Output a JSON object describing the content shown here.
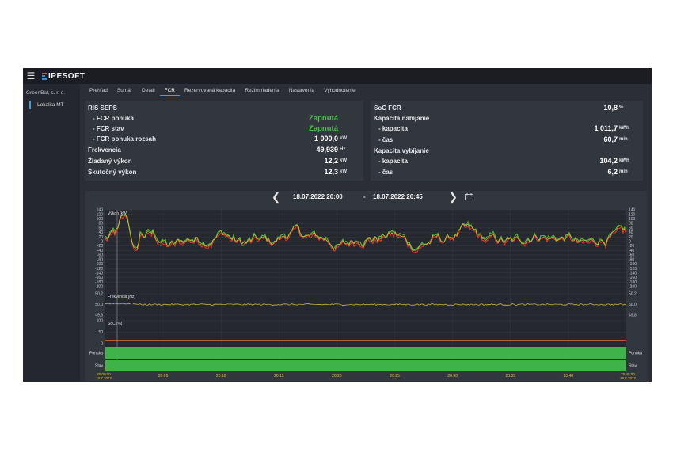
{
  "app": {
    "logo_text": "IPESOFT",
    "menu_icon": "hamburger-icon"
  },
  "sidebar": {
    "company": "GreenBat, s. r. o.",
    "site": "Lokalita MT"
  },
  "tabs": [
    {
      "label": "Prehľad",
      "active": false
    },
    {
      "label": "Sumár",
      "active": false
    },
    {
      "label": "Detail",
      "active": false
    },
    {
      "label": "FCR",
      "active": true
    },
    {
      "label": "Rezervovaná kapacita",
      "active": false
    },
    {
      "label": "Režim riadenia",
      "active": false
    },
    {
      "label": "Nastavenia",
      "active": false
    },
    {
      "label": "Vyhodnotenie",
      "active": false
    }
  ],
  "ris": {
    "title": "RIS SEPS",
    "fcr_offer_label": "- FCR ponuka",
    "fcr_offer_value": "Zapnutá",
    "fcr_state_label": "- FCR stav",
    "fcr_state_value": "Zapnutá",
    "fcr_range_label": "- FCR ponuka rozsah",
    "fcr_range_value": "1 000,0",
    "fcr_range_unit": "kW",
    "frequency_label": "Frekvencia",
    "frequency_value": "49,939",
    "frequency_unit": "Hz",
    "requested_label": "Žiadaný výkon",
    "requested_value": "12,2",
    "requested_unit": "kW",
    "actual_label": "Skutočný výkon",
    "actual_value": "12,3",
    "actual_unit": "kW"
  },
  "soc": {
    "soc_label": "SoC FCR",
    "soc_value": "10,8",
    "soc_unit": "%",
    "charge_title": "Kapacita nabíjanie",
    "charge_capacity_label": "- kapacita",
    "charge_capacity_value": "1 011,7",
    "charge_capacity_unit": "kWh",
    "charge_time_label": "- čas",
    "charge_time_value": "60,7",
    "charge_time_unit": "min",
    "discharge_title": "Kapacita vybíjanie",
    "discharge_capacity_label": "- kapacita",
    "discharge_capacity_value": "104,2",
    "discharge_capacity_unit": "kWh",
    "discharge_time_label": "- čas",
    "discharge_time_value": "6,2",
    "discharge_time_unit": "min"
  },
  "range": {
    "from": "18.07.2022 20:00",
    "separator": "-",
    "to": "18.07.2022 20:45"
  },
  "chart_data": {
    "type": "line",
    "panels": [
      {
        "label": "Výkon [kW]",
        "ylim": [
          -200,
          140
        ],
        "ticks": [
          "140",
          "120",
          "100",
          "80",
          "60",
          "40",
          "20",
          "0",
          "-20",
          "-40",
          "-60",
          "-80",
          "-100",
          "-120",
          "-140",
          "-160",
          "-180",
          "-200"
        ],
        "series": [
          {
            "name": "red",
            "color": "#e0332a"
          },
          {
            "name": "green",
            "color": "#56b83a"
          },
          {
            "name": "yellow",
            "color": "#d9c23a"
          }
        ]
      },
      {
        "label": "Frekvencia [Hz]",
        "ylim": [
          49.8,
          50.2
        ],
        "ticks": [
          "50,2",
          "50,0",
          "49,8"
        ],
        "value": 50.0,
        "color": "#d9c23a"
      },
      {
        "label": "SoC [%]",
        "ylim": [
          0,
          100
        ],
        "ticks": [
          "100",
          "50",
          "0"
        ],
        "value": 15,
        "color": "#e06a3a"
      },
      {
        "label": "Ponuka",
        "color": "#3fb34a"
      },
      {
        "label": "Stav",
        "color": "#3fb34a"
      }
    ],
    "x_start": "20:00:00",
    "x_start_date": "18.7.2022",
    "x_end": "20:45:00",
    "x_end_date": "18.7.2022",
    "x_ticks": [
      "20:05",
      "20:10",
      "20:15",
      "20:20",
      "20:25",
      "20:30",
      "20:35",
      "20:40"
    ],
    "axis_color": "#d9c23a"
  }
}
